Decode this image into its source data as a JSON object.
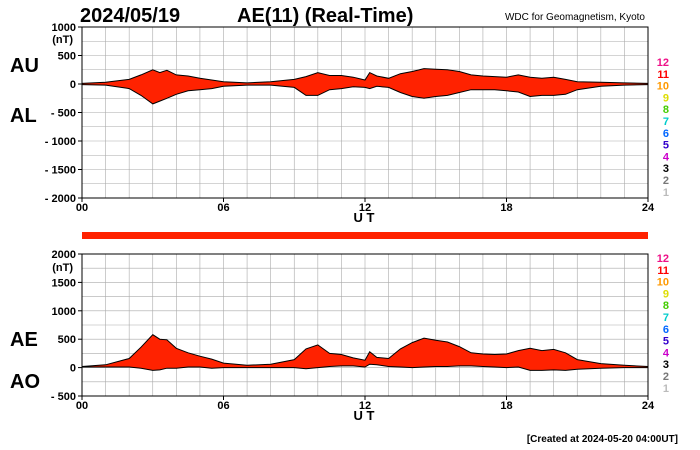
{
  "header": {
    "date": "2024/05/19",
    "title": "AE(11) (Real-Time)",
    "source": "WDC for Geomagnetism, Kyoto"
  },
  "footer": {
    "created": "[Created at 2024-05-20 04:00UT]"
  },
  "colors": {
    "fill": "#ff2200",
    "grid": "#aaaaaa",
    "line": "#000000"
  },
  "station_legend": [
    {
      "label": "12",
      "color": "#ee1188"
    },
    {
      "label": "11",
      "color": "#ff0000"
    },
    {
      "label": "10",
      "color": "#ff9900"
    },
    {
      "label": "9",
      "color": "#dddd00"
    },
    {
      "label": "8",
      "color": "#44cc00"
    },
    {
      "label": "7",
      "color": "#00cccc"
    },
    {
      "label": "6",
      "color": "#0066ff"
    },
    {
      "label": "5",
      "color": "#3300cc"
    },
    {
      "label": "4",
      "color": "#cc00cc"
    },
    {
      "label": "3",
      "color": "#000000"
    },
    {
      "label": "2",
      "color": "#777777"
    },
    {
      "label": "1",
      "color": "#bbbbbb"
    }
  ],
  "chart_data": [
    {
      "type": "area",
      "panel": "top",
      "unit_label": "(nT)",
      "series_labels": [
        "AU",
        "AL"
      ],
      "xlabel": "U T",
      "ylim": [
        -2000,
        1000
      ],
      "yticks": [
        {
          "v": 1000,
          "label": "1000"
        },
        {
          "v": 500,
          "label": "500"
        },
        {
          "v": 0,
          "label": "0"
        },
        {
          "v": -500,
          "label": "- 500"
        },
        {
          "v": -1000,
          "label": "- 1000"
        },
        {
          "v": -1500,
          "label": "- 1500"
        },
        {
          "v": -2000,
          "label": "- 2000"
        }
      ],
      "xlim": [
        0,
        24
      ],
      "xticks": [
        {
          "v": 0,
          "label": "00"
        },
        {
          "v": 6,
          "label": "06"
        },
        {
          "v": 12,
          "label": "12"
        },
        {
          "v": 18,
          "label": "18"
        },
        {
          "v": 24,
          "label": "24"
        }
      ],
      "x": [
        0,
        1,
        2,
        2.5,
        3,
        3.3,
        3.6,
        4,
        4.5,
        5,
        5.5,
        6,
        7,
        8,
        9,
        9.5,
        10,
        10.5,
        11,
        11.5,
        12,
        12.2,
        12.5,
        13,
        13.5,
        14,
        14.5,
        15,
        15.5,
        16,
        16.5,
        17,
        17.5,
        18,
        18.5,
        19,
        19.5,
        20,
        20.5,
        21,
        22,
        23,
        24
      ],
      "upper": [
        10,
        30,
        80,
        160,
        250,
        200,
        240,
        160,
        140,
        100,
        70,
        40,
        20,
        40,
        80,
        130,
        200,
        150,
        150,
        120,
        70,
        200,
        140,
        100,
        180,
        220,
        270,
        260,
        250,
        220,
        160,
        140,
        130,
        120,
        160,
        120,
        100,
        120,
        80,
        40,
        30,
        20,
        10
      ],
      "lower": [
        -10,
        -20,
        -80,
        -200,
        -350,
        -300,
        -250,
        -180,
        -120,
        -100,
        -80,
        -40,
        -20,
        -20,
        -60,
        -200,
        -200,
        -100,
        -80,
        -50,
        -60,
        -80,
        -40,
        -60,
        -150,
        -220,
        -250,
        -220,
        -200,
        -150,
        -100,
        -100,
        -100,
        -120,
        -140,
        -220,
        -200,
        -200,
        -180,
        -100,
        -40,
        -20,
        -10
      ]
    },
    {
      "type": "area",
      "panel": "bottom",
      "unit_label": "(nT)",
      "series_labels": [
        "AE",
        "AO"
      ],
      "xlabel": "U T",
      "ylim": [
        -500,
        2000
      ],
      "yticks": [
        {
          "v": 2000,
          "label": "2000"
        },
        {
          "v": 1500,
          "label": "1500"
        },
        {
          "v": 1000,
          "label": "1000"
        },
        {
          "v": 500,
          "label": "500"
        },
        {
          "v": 0,
          "label": "0"
        },
        {
          "v": -500,
          "label": "- 500"
        }
      ],
      "xlim": [
        0,
        24
      ],
      "xticks": [
        {
          "v": 0,
          "label": "00"
        },
        {
          "v": 6,
          "label": "06"
        },
        {
          "v": 12,
          "label": "12"
        },
        {
          "v": 18,
          "label": "18"
        },
        {
          "v": 24,
          "label": "24"
        }
      ],
      "x": [
        0,
        1,
        2,
        2.5,
        3,
        3.3,
        3.6,
        4,
        4.5,
        5,
        5.5,
        6,
        7,
        8,
        9,
        9.5,
        10,
        10.5,
        11,
        11.5,
        12,
        12.2,
        12.5,
        13,
        13.5,
        14,
        14.5,
        15,
        15.5,
        16,
        16.5,
        17,
        17.5,
        18,
        18.5,
        19,
        19.5,
        20,
        20.5,
        21,
        22,
        23,
        24
      ],
      "upper": [
        20,
        50,
        160,
        360,
        580,
        500,
        490,
        340,
        260,
        200,
        150,
        80,
        40,
        60,
        140,
        330,
        400,
        250,
        230,
        170,
        130,
        280,
        180,
        160,
        330,
        440,
        520,
        480,
        450,
        370,
        260,
        240,
        230,
        240,
        300,
        340,
        300,
        320,
        260,
        140,
        70,
        40,
        20
      ],
      "lower": [
        10,
        10,
        10,
        -10,
        -50,
        -40,
        -10,
        -10,
        10,
        10,
        -10,
        0,
        0,
        0,
        0,
        -20,
        0,
        20,
        30,
        30,
        10,
        60,
        50,
        20,
        10,
        0,
        10,
        20,
        20,
        30,
        30,
        20,
        10,
        0,
        10,
        -50,
        -50,
        -40,
        -50,
        -30,
        -10,
        0,
        0
      ]
    }
  ]
}
